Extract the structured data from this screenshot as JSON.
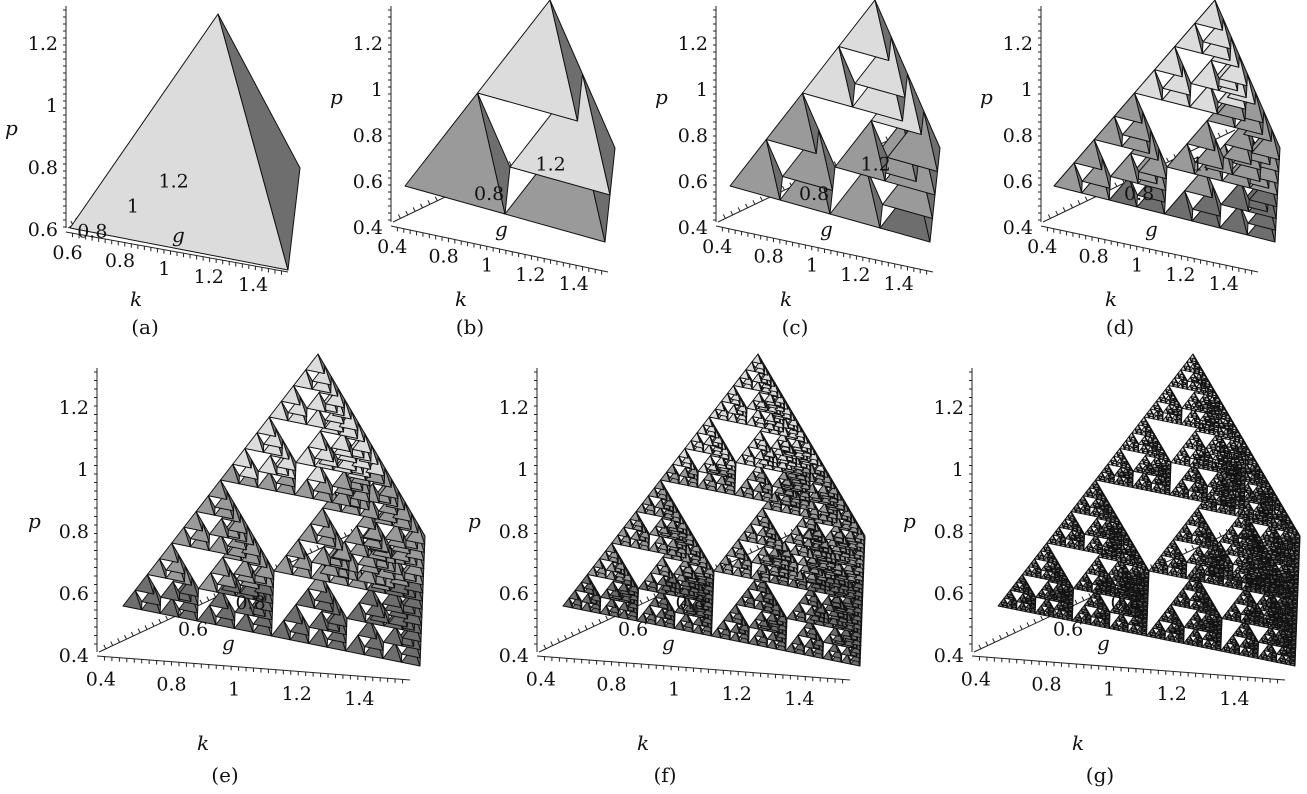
{
  "panels": [
    {
      "id": "a",
      "caption": "(a)",
      "level": 0,
      "p_ticks": [
        "1.2",
        "1",
        "0.8",
        "0.6"
      ],
      "g_ticks": [
        "1.2",
        "1",
        "0.8"
      ],
      "k_ticks": [
        "0.6",
        "0.8",
        "1",
        "1.2",
        "1.4"
      ],
      "axis_labels": {
        "p": "p",
        "g": "g",
        "k": "k"
      }
    },
    {
      "id": "b",
      "caption": "(b)",
      "level": 1,
      "p_ticks": [
        "1.2",
        "1",
        "0.8",
        "0.6",
        "0.4"
      ],
      "g_ticks": [
        "1.2",
        "0.8"
      ],
      "k_ticks": [
        "0.4",
        "0.8",
        "1",
        "1.2",
        "1.4"
      ],
      "axis_labels": {
        "p": "p",
        "g": "g",
        "k": "k"
      }
    },
    {
      "id": "c",
      "caption": "(c)",
      "level": 2,
      "p_ticks": [
        "1.2",
        "1",
        "0.8",
        "0.6",
        "0.4"
      ],
      "g_ticks": [
        "1.2",
        "0.8"
      ],
      "k_ticks": [
        "0.4",
        "0.8",
        "1",
        "1.2",
        "1.4"
      ],
      "axis_labels": {
        "p": "p",
        "g": "g",
        "k": "k"
      }
    },
    {
      "id": "d",
      "caption": "(d)",
      "level": 3,
      "p_ticks": [
        "1.2",
        "1",
        "0.8",
        "0.6",
        "0.4"
      ],
      "g_ticks": [
        "1.",
        "0.8"
      ],
      "k_ticks": [
        "0.4",
        "0.8",
        "1",
        "1.2",
        "1.4"
      ],
      "axis_labels": {
        "p": "p",
        "g": "g",
        "k": "k"
      }
    },
    {
      "id": "e",
      "caption": "(e)",
      "level": 4,
      "p_ticks": [
        "1.2",
        "1",
        "0.8",
        "0.6",
        "0.4"
      ],
      "g_ticks": [
        "0.8",
        "0.6"
      ],
      "k_ticks": [
        "0.4",
        "0.8",
        "1",
        "1.2",
        "1.4"
      ],
      "axis_labels": {
        "p": "p",
        "g": "g",
        "k": "k"
      }
    },
    {
      "id": "f",
      "caption": "(f)",
      "level": 5,
      "p_ticks": [
        "1.2",
        "1",
        "0.8",
        "0.6",
        "0.4"
      ],
      "g_ticks": [
        "0.8",
        "0.6"
      ],
      "k_ticks": [
        "0.4",
        "0.8",
        "1",
        "1.2",
        "1.4"
      ],
      "axis_labels": {
        "p": "p",
        "g": "g",
        "k": "k"
      }
    },
    {
      "id": "g",
      "caption": "(g)",
      "level": 6,
      "p_ticks": [
        "1.2",
        "1",
        "0.8",
        "0.6",
        "0.4"
      ],
      "g_ticks": [
        "0.8",
        "0.6"
      ],
      "k_ticks": [
        "0.4",
        "0.8",
        "1",
        "1.2",
        "1.4"
      ],
      "axis_labels": {
        "p": "p",
        "g": "g",
        "k": "k"
      }
    }
  ],
  "colors": {
    "face_light": "#dcdcdc",
    "face_mid": "#9a9a9a",
    "face_dark": "#6e6e6e",
    "edge": "#111111"
  }
}
